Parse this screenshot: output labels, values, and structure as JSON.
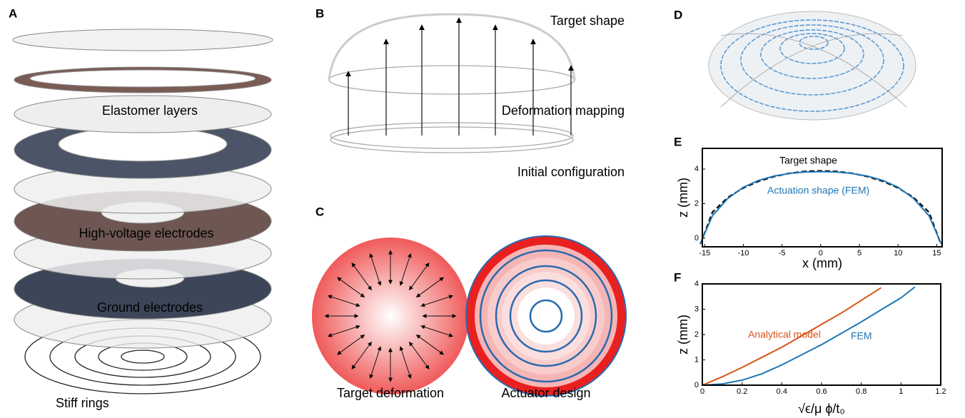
{
  "panel_a": {
    "label": "A",
    "texts": [
      "Elastomer layers",
      "High-voltage electrodes",
      "Ground electrodes",
      "Stiff rings"
    ]
  },
  "panel_b": {
    "label": "B",
    "texts": [
      "Target shape",
      "Deformation mapping",
      "Initial configuration"
    ]
  },
  "panel_c": {
    "label": "C",
    "texts": [
      "Target deformation",
      "Actuator design"
    ]
  },
  "panel_d": {
    "label": "D"
  },
  "chart_data": [
    {
      "type": "line",
      "label": "E",
      "xlabel": "x (mm)",
      "ylabel": "z (mm)",
      "xlim": [
        -15.3,
        15.7
      ],
      "ylim": [
        -0.5,
        5.2
      ],
      "xticks": [
        -15,
        -10,
        -5,
        0,
        5,
        10,
        15
      ],
      "yticks": [
        0,
        2,
        4
      ],
      "annotations": [
        "Target shape",
        "Actuation shape (FEM)"
      ],
      "series": [
        {
          "name": "Target shape",
          "color": "#000000",
          "dash": true,
          "x": [
            -15.5,
            -14,
            -12,
            -10,
            -8,
            -6,
            -4,
            -2,
            0,
            2,
            4,
            6,
            8,
            10,
            12,
            14,
            15.5
          ],
          "values": [
            -0.3,
            1.5,
            2.36,
            2.91,
            3.3,
            3.57,
            3.76,
            3.87,
            3.9,
            3.87,
            3.76,
            3.57,
            3.3,
            2.91,
            2.36,
            1.5,
            -0.3
          ]
        },
        {
          "name": "Actuation shape (FEM)",
          "color": "#1f77b4",
          "dash": false,
          "x": [
            -15.6,
            -14,
            -12,
            -10,
            -8,
            -6,
            -4,
            -2,
            0,
            2,
            4,
            6,
            8,
            10,
            12,
            14,
            15.6
          ],
          "values": [
            -0.35,
            1.3,
            2.3,
            2.95,
            3.35,
            3.6,
            3.75,
            3.83,
            3.85,
            3.83,
            3.75,
            3.6,
            3.35,
            2.95,
            2.3,
            1.3,
            -0.35
          ]
        }
      ]
    },
    {
      "type": "line",
      "label": "F",
      "xlabel": "√ϵ/μ ϕ/t₀",
      "ylabel": "z (mm)",
      "xlim": [
        0,
        1.2
      ],
      "ylim": [
        0,
        4
      ],
      "xticks": [
        0,
        0.2,
        0.4,
        0.6,
        0.8,
        1,
        1.2
      ],
      "yticks": [
        0,
        1,
        2,
        3,
        4
      ],
      "annotations": [
        "Analytical model",
        "FEM"
      ],
      "series": [
        {
          "name": "Analytical model",
          "color": "#d95319",
          "dash": false,
          "x": [
            0,
            0.1,
            0.2,
            0.3,
            0.4,
            0.5,
            0.6,
            0.7,
            0.8,
            0.9
          ],
          "values": [
            0,
            0.33,
            0.7,
            1.1,
            1.5,
            1.95,
            2.4,
            2.85,
            3.35,
            3.85
          ]
        },
        {
          "name": "FEM",
          "color": "#1f77b4",
          "dash": false,
          "x": [
            0,
            0.1,
            0.2,
            0.3,
            0.4,
            0.5,
            0.6,
            0.7,
            0.8,
            0.9,
            1,
            1.07
          ],
          "values": [
            0,
            0.05,
            0.2,
            0.45,
            0.8,
            1.2,
            1.6,
            2.05,
            2.5,
            2.98,
            3.45,
            3.88
          ]
        }
      ]
    }
  ]
}
